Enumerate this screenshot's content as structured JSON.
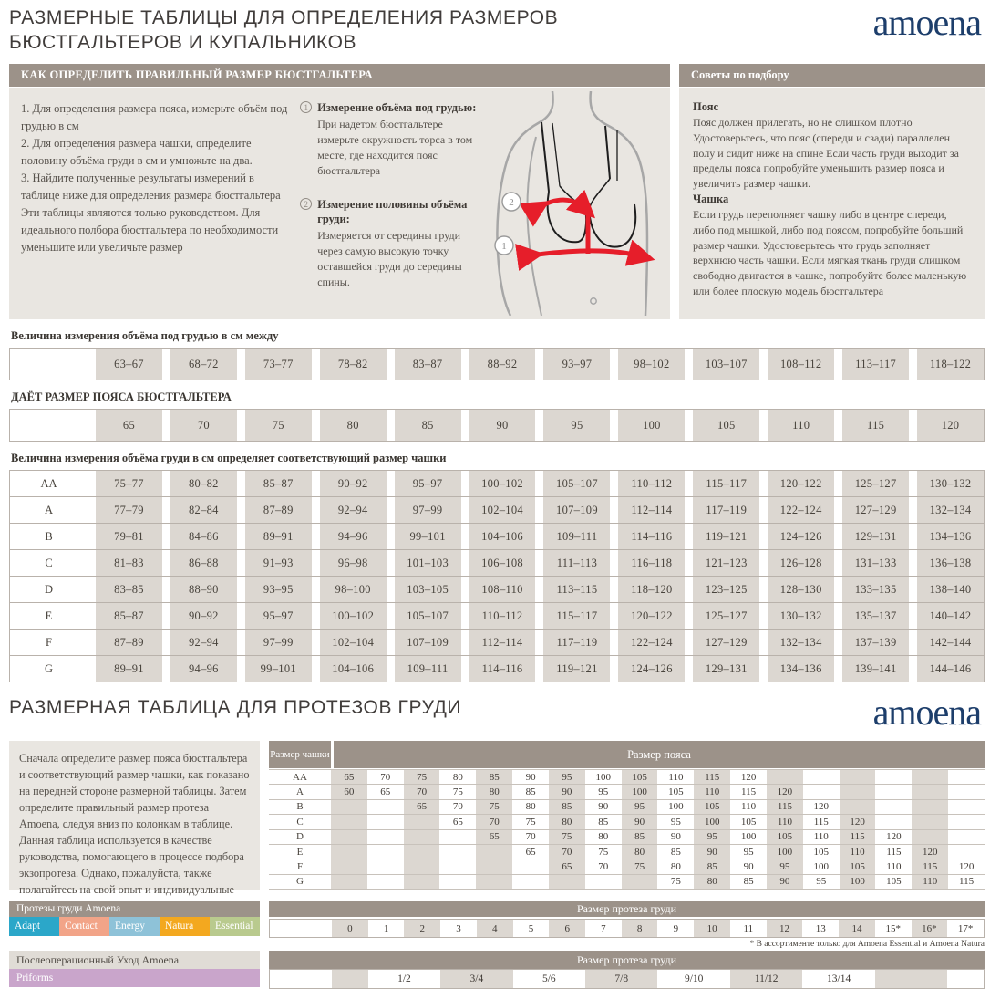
{
  "page": {
    "title_line1": "РАЗМЕРНЫЕ ТАБЛИЦЫ ДЛЯ ОПРЕДЕЛЕНИЯ РАЗМЕРОВ",
    "title_line2": "БЮСТГАЛЬТЕРОВ И КУПАЛЬНИКОВ",
    "brand": "amoena"
  },
  "how_to": {
    "header": "КАК ОПРЕДЕЛИТЬ ПРАВИЛЬНЫЙ РАЗМЕР БЮСТГАЛЬТЕРА",
    "steps": [
      "1. Для определения размера пояса, измерьте объём под грудью в см",
      "2.  Для определения размера чашки, определите половину объёма груди в см и умножьте на два.",
      "3.  Найдите полученные результаты измерений в таблице ниже для определения размера бюстгальтера"
    ],
    "note": "Эти таблицы являются только руководством. Для идеального полбора бюстгальтера по необходимости уменьшите или увеличьте размер",
    "measures": [
      {
        "num": "1",
        "title": "Измерение объёма под грудью:",
        "text": "При надетом бюстгальтере измерьте окружность торса в том месте, где находится пояс бюстгальтера"
      },
      {
        "num": "2",
        "title": "Измерение половины объёма груди:",
        "text": "Измеряется от середины груди через самую высокую точку оставшейся груди до середины спины."
      }
    ]
  },
  "diagram": {
    "marker1": "1",
    "marker2": "2"
  },
  "tips": {
    "header": "Советы по подбору",
    "belt_title": "Пояс",
    "belt_text": "Пояс должен прилегать, но не слишком плотно Удостоверьтесь, что пояс (спереди и сзади) параллелен полу и сидит ниже на спине Если часть груди выходит за пределы пояса попробуйте уменьшить размер пояса и увеличить размер чашки.",
    "cup_title": "Чашка",
    "cup_text": "Если грудь переполняет чашку либо в центре спереди, либо под мышкой, либо под поясом, попробуйте больший размер чашки. Удостоверьтесь что грудь заполняет верхнюю часть чашки. Если мягкая ткань груди слишком свободно двигается в чашке, попробуйте более маленькую или более плоскую модель бюстгальтера"
  },
  "underbust_table": {
    "title": "Величина измерения объёма под грудью в см между",
    "values": [
      "63–67",
      "68–72",
      "73–77",
      "78–82",
      "83–87",
      "88–92",
      "93–97",
      "98–102",
      "103–107",
      "108–112",
      "113–117",
      "118–122"
    ]
  },
  "band_table": {
    "title": "ДАЁТ РАЗМЕР ПОЯСА БЮСТГАЛЬТЕРА",
    "values": [
      "65",
      "70",
      "75",
      "80",
      "85",
      "90",
      "95",
      "100",
      "105",
      "110",
      "115",
      "120"
    ]
  },
  "cup_table": {
    "title": "Величина измерения объёма груди в см определяет соответствующий размер чашки",
    "rows": [
      {
        "cup": "AA",
        "values": [
          "75–77",
          "80–82",
          "85–87",
          "90–92",
          "95–97",
          "100–102",
          "105–107",
          "110–112",
          "115–117",
          "120–122",
          "125–127",
          "130–132"
        ]
      },
      {
        "cup": "A",
        "values": [
          "77–79",
          "82–84",
          "87–89",
          "92–94",
          "97–99",
          "102–104",
          "107–109",
          "112–114",
          "117–119",
          "122–124",
          "127–129",
          "132–134"
        ]
      },
      {
        "cup": "B",
        "values": [
          "79–81",
          "84–86",
          "89–91",
          "94–96",
          "99–101",
          "104–106",
          "109–111",
          "114–116",
          "119–121",
          "124–126",
          "129–131",
          "134–136"
        ]
      },
      {
        "cup": "C",
        "values": [
          "81–83",
          "86–88",
          "91–93",
          "96–98",
          "101–103",
          "106–108",
          "111–113",
          "116–118",
          "121–123",
          "126–128",
          "131–133",
          "136–138"
        ]
      },
      {
        "cup": "D",
        "values": [
          "83–85",
          "88–90",
          "93–95",
          "98–100",
          "103–105",
          "108–110",
          "113–115",
          "118–120",
          "123–125",
          "128–130",
          "133–135",
          "138–140"
        ]
      },
      {
        "cup": "E",
        "values": [
          "85–87",
          "90–92",
          "95–97",
          "100–102",
          "105–107",
          "110–112",
          "115–117",
          "120–122",
          "125–127",
          "130–132",
          "135–137",
          "140–142"
        ]
      },
      {
        "cup": "F",
        "values": [
          "87–89",
          "92–94",
          "97–99",
          "102–104",
          "107–109",
          "112–114",
          "117–119",
          "122–124",
          "127–129",
          "132–134",
          "137–139",
          "142–144"
        ]
      },
      {
        "cup": "G",
        "values": [
          "89–91",
          "94–96",
          "99–101",
          "104–106",
          "109–111",
          "114–116",
          "119–121",
          "124–126",
          "129–131",
          "134–136",
          "139–141",
          "144–146"
        ]
      }
    ]
  },
  "section2": {
    "title": "РАЗМЕРНАЯ ТАБЛИЦА ДЛЯ ПРОТЕЗОВ ГРУДИ",
    "brand": "amoena",
    "intro": "Сначала определите размер пояса бюстгальтера и соответствующий размер чашки, как показано на передней стороне размерной таблицы. Затем определите правильный размер протеза Amoena, следуя вниз по колонкам в таблице. Данная таблица используется в качестве руководства, помогающего в процессе подбора экзопротеза. Однако, пожалуйста, также полагайтесь на свой опыт и индивидуальные ощущения."
  },
  "prosthesis_table": {
    "cup_header": "Размер чашки",
    "band_header": "Размер пояса",
    "columns": 18,
    "rows": [
      {
        "cup": "AA",
        "start": 0,
        "values": [
          "65",
          "70",
          "75",
          "80",
          "85",
          "90",
          "95",
          "100",
          "105",
          "110",
          "115",
          "120"
        ]
      },
      {
        "cup": "A",
        "start": 0,
        "values": [
          "60",
          "65",
          "70",
          "75",
          "80",
          "85",
          "90",
          "95",
          "100",
          "105",
          "110",
          "115",
          "120"
        ]
      },
      {
        "cup": "B",
        "start": 2,
        "values": [
          "65",
          "70",
          "75",
          "80",
          "85",
          "90",
          "95",
          "100",
          "105",
          "110",
          "115",
          "120"
        ]
      },
      {
        "cup": "C",
        "start": 3,
        "values": [
          "65",
          "70",
          "75",
          "80",
          "85",
          "90",
          "95",
          "100",
          "105",
          "110",
          "115",
          "120"
        ]
      },
      {
        "cup": "D",
        "start": 4,
        "values": [
          "65",
          "70",
          "75",
          "80",
          "85",
          "90",
          "95",
          "100",
          "105",
          "110",
          "115",
          "120"
        ]
      },
      {
        "cup": "E",
        "start": 5,
        "values": [
          "65",
          "70",
          "75",
          "80",
          "85",
          "90",
          "95",
          "100",
          "105",
          "110",
          "115",
          "120"
        ]
      },
      {
        "cup": "F",
        "start": 6,
        "values": [
          "65",
          "70",
          "75",
          "80",
          "85",
          "90",
          "95",
          "100",
          "105",
          "110",
          "115",
          "120"
        ]
      },
      {
        "cup": "G",
        "start": 9,
        "values": [
          "75",
          "80",
          "85",
          "90",
          "95",
          "100",
          "105",
          "110",
          "115"
        ]
      }
    ]
  },
  "products": {
    "header": "Протезы груди Amoena",
    "chips": [
      {
        "label": "Adapt",
        "color": "#2ba7c9"
      },
      {
        "label": "Contact",
        "color": "#f2a488"
      },
      {
        "label": "Energy",
        "color": "#8ec2d8"
      },
      {
        "label": "Natura",
        "color": "#f3a81f"
      },
      {
        "label": "Essential",
        "color": "#b9ca8e"
      }
    ]
  },
  "size_row": {
    "header": "Размер протеза груди",
    "values": [
      "0",
      "1",
      "2",
      "3",
      "4",
      "5",
      "6",
      "7",
      "8",
      "9",
      "10",
      "11",
      "12",
      "13",
      "14",
      "15*",
      "16*",
      "17*"
    ],
    "footnote": "* В ассортименте только для  Amoena Essential и Amoena Natura"
  },
  "aftercare": {
    "header": "Послеоперационный Уход Amoena",
    "chip": {
      "label": "Priforms",
      "color": "#c9a5cb"
    }
  },
  "bottom_row": {
    "header": "Размер протеза груди",
    "values": [
      "1/2",
      "3/4",
      "5/6",
      "7/8",
      "9/10",
      "11/12",
      "13/14"
    ]
  }
}
